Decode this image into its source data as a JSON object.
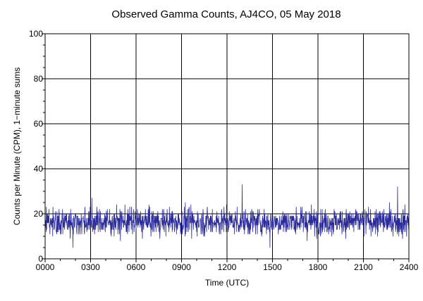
{
  "chart_data": {
    "type": "line",
    "title": "Observed Gamma Counts, AJ4CO, 05 May 2018",
    "xlabel": "Time (UTC)",
    "ylabel": "Counts per Minute (CPM), 1−minute sums",
    "xlim": [
      0,
      1440
    ],
    "ylim": [
      0,
      100
    ],
    "x_ticks": [
      {
        "minute": 0,
        "label": "0000"
      },
      {
        "minute": 180,
        "label": "0300"
      },
      {
        "minute": 360,
        "label": "0600"
      },
      {
        "minute": 540,
        "label": "0900"
      },
      {
        "minute": 720,
        "label": "1200"
      },
      {
        "minute": 900,
        "label": "1500"
      },
      {
        "minute": 1080,
        "label": "1800"
      },
      {
        "minute": 1260,
        "label": "2100"
      },
      {
        "minute": 1440,
        "label": "2400"
      }
    ],
    "y_ticks": [
      0,
      20,
      40,
      60,
      80,
      100
    ],
    "grid": true,
    "series": [
      {
        "name": "",
        "color": "#2b2b9a",
        "sampling": "1-minute sums, one point per minute",
        "mean": 16.5,
        "range_observed": [
          5,
          33
        ],
        "notable_points": [
          {
            "time": "0150",
            "value": 5
          },
          {
            "time": "0305",
            "value": 27
          },
          {
            "time": "1300",
            "value": 33
          },
          {
            "time": "1450",
            "value": 5
          },
          {
            "time": "2315",
            "value": 32
          },
          {
            "time": "2320",
            "value": 10
          }
        ]
      }
    ]
  }
}
